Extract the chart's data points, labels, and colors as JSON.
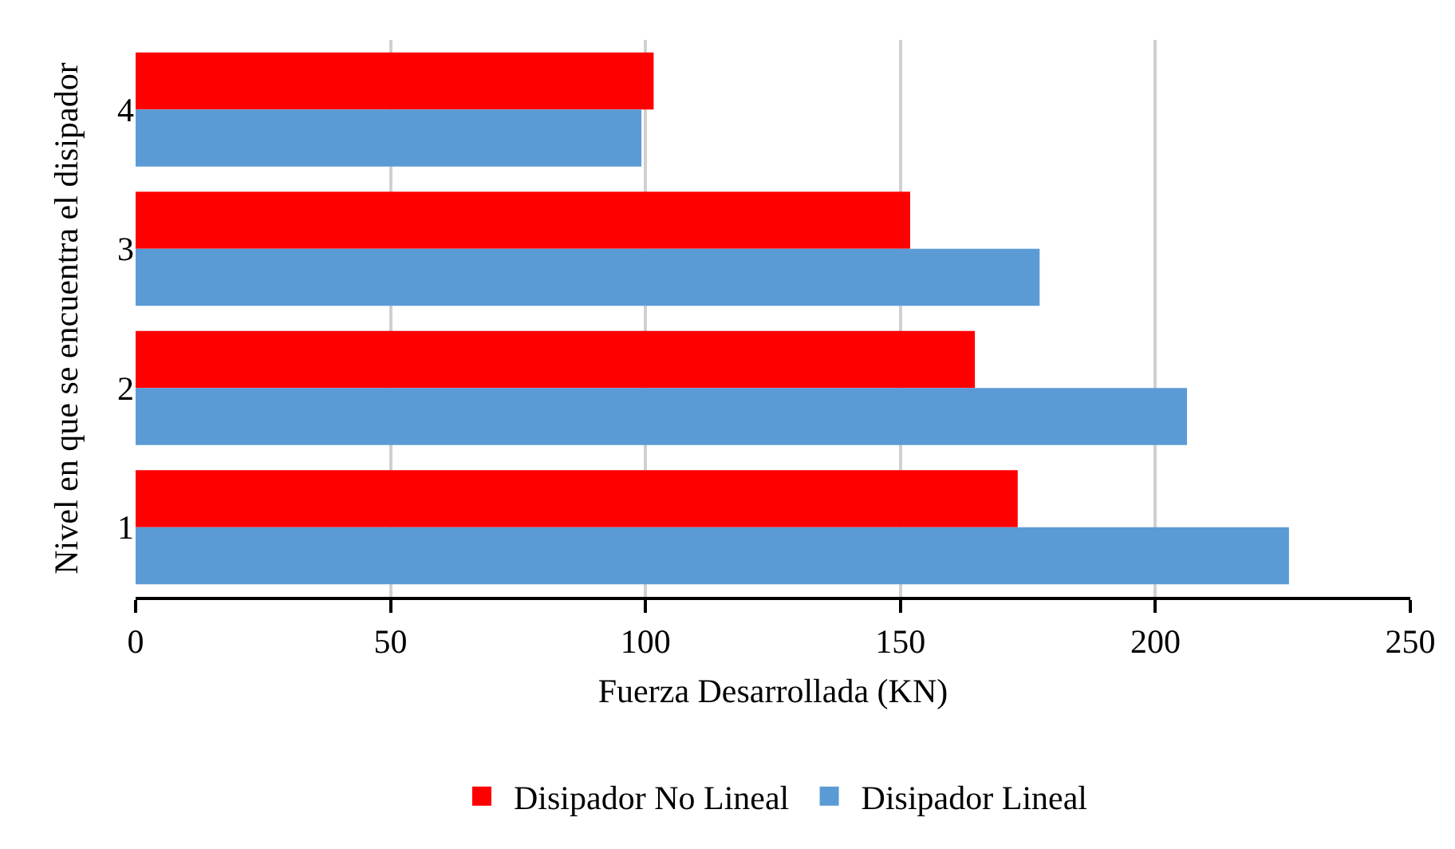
{
  "chart_data": {
    "type": "bar",
    "orientation": "horizontal",
    "xlabel": "Fuerza Desarrollada (KN)",
    "ylabel": "Nivel en que se encuentra el disipador",
    "categories": [
      "4",
      "3",
      "2",
      "1"
    ],
    "series": [
      {
        "name": "Disipador No Lineal",
        "color": "#ff0000",
        "values": [
          101.6,
          151.9,
          164.6,
          173
        ]
      },
      {
        "name": "Disipador Lineal",
        "color": "#5b9bd5",
        "values": [
          99.2,
          177.3,
          206.2,
          226.2
        ]
      }
    ],
    "xlim": [
      0,
      250
    ],
    "xticks": [
      0,
      50,
      100,
      150,
      200,
      250
    ],
    "grid": "x",
    "legend": "bottom"
  }
}
